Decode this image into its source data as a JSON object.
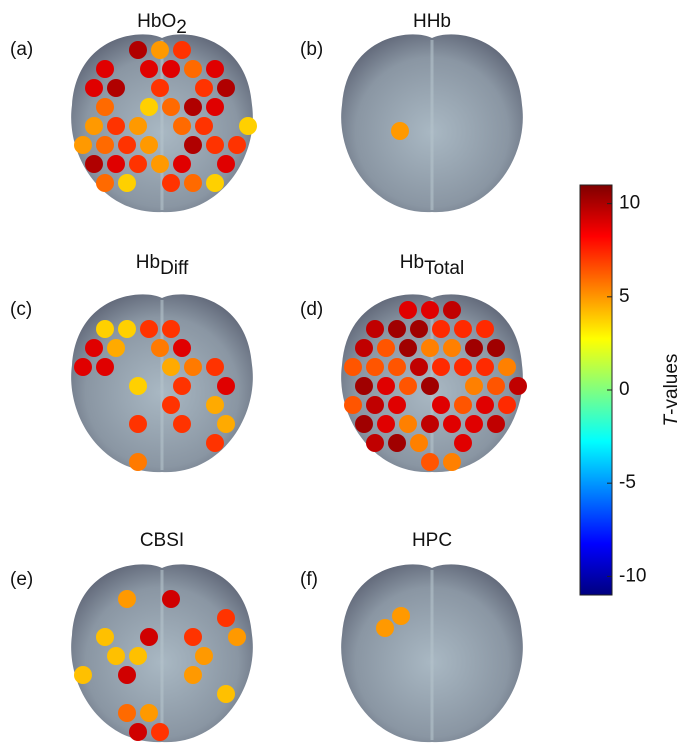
{
  "panels": [
    {
      "label": "(a)",
      "title": {
        "text": "HbO",
        "sub": "2"
      }
    },
    {
      "label": "(b)",
      "title": {
        "text": "HHb"
      }
    },
    {
      "label": "(c)",
      "title": {
        "text": "Hb",
        "sub": "Diff"
      }
    },
    {
      "label": "(d)",
      "title": {
        "text": "Hb",
        "sub": "Total"
      }
    },
    {
      "label": "(e)",
      "title": {
        "text": "CBSI"
      }
    },
    {
      "label": "(f)",
      "title": {
        "text": "HPC"
      }
    }
  ],
  "colorbar": {
    "label": {
      "italic": "T",
      "text": "-values"
    },
    "ylim": [
      -11,
      11
    ],
    "yticks": [
      10,
      5,
      0,
      -5,
      -10
    ]
  }
}
